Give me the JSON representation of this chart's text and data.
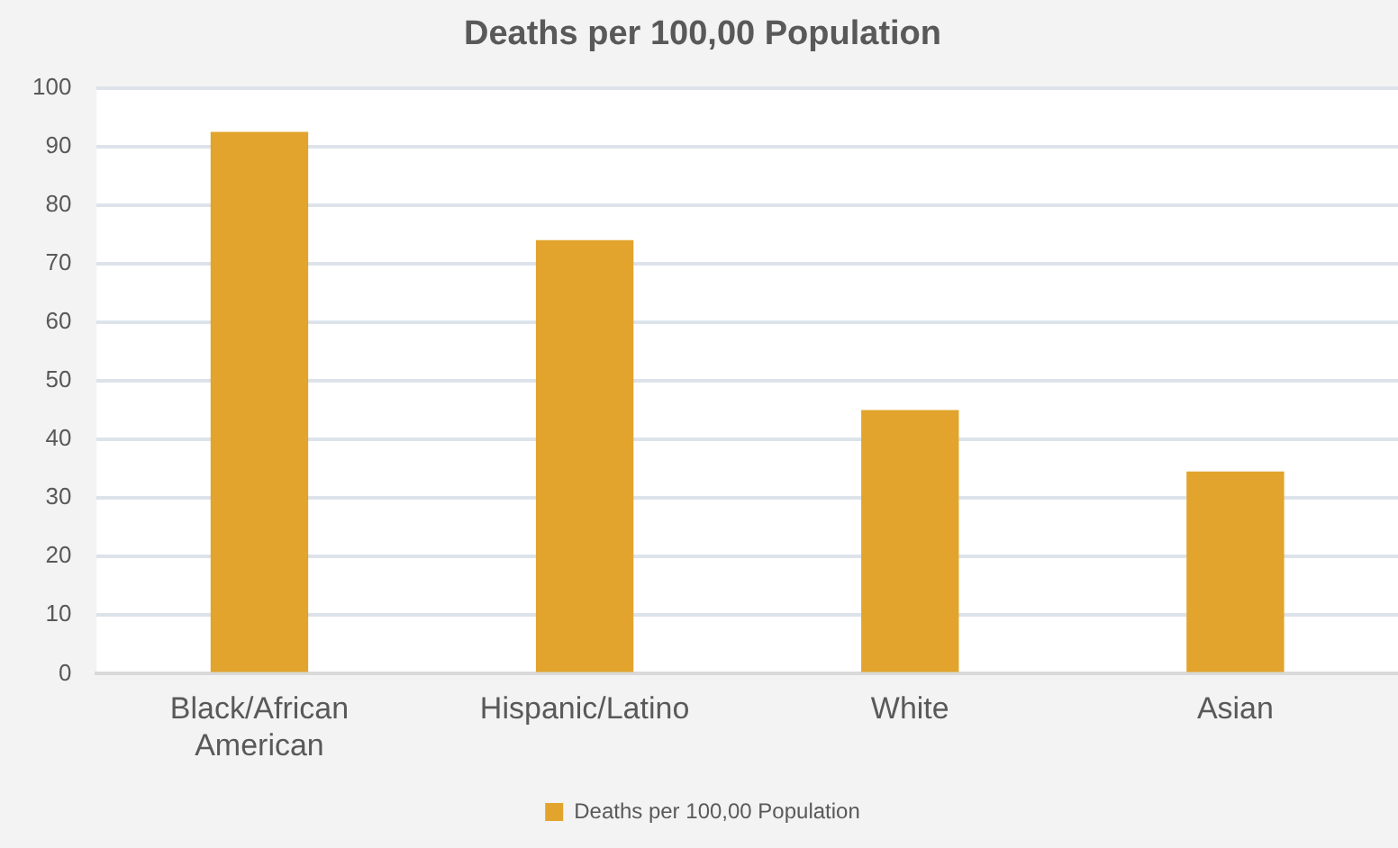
{
  "chart_data": {
    "type": "bar",
    "title": "Deaths per 100,00 Population",
    "categories": [
      "Black/African American",
      "Hispanic/Latino",
      "White",
      "Asian"
    ],
    "series": [
      {
        "name": "Deaths per 100,00 Population",
        "color": "#e2a42d",
        "values": [
          92.5,
          74,
          45,
          34.5
        ]
      }
    ],
    "ylim": [
      0,
      100
    ],
    "yticks": [
      0,
      10,
      20,
      30,
      40,
      50,
      60,
      70,
      80,
      90,
      100
    ],
    "grid": "y",
    "legend": "bottom"
  }
}
